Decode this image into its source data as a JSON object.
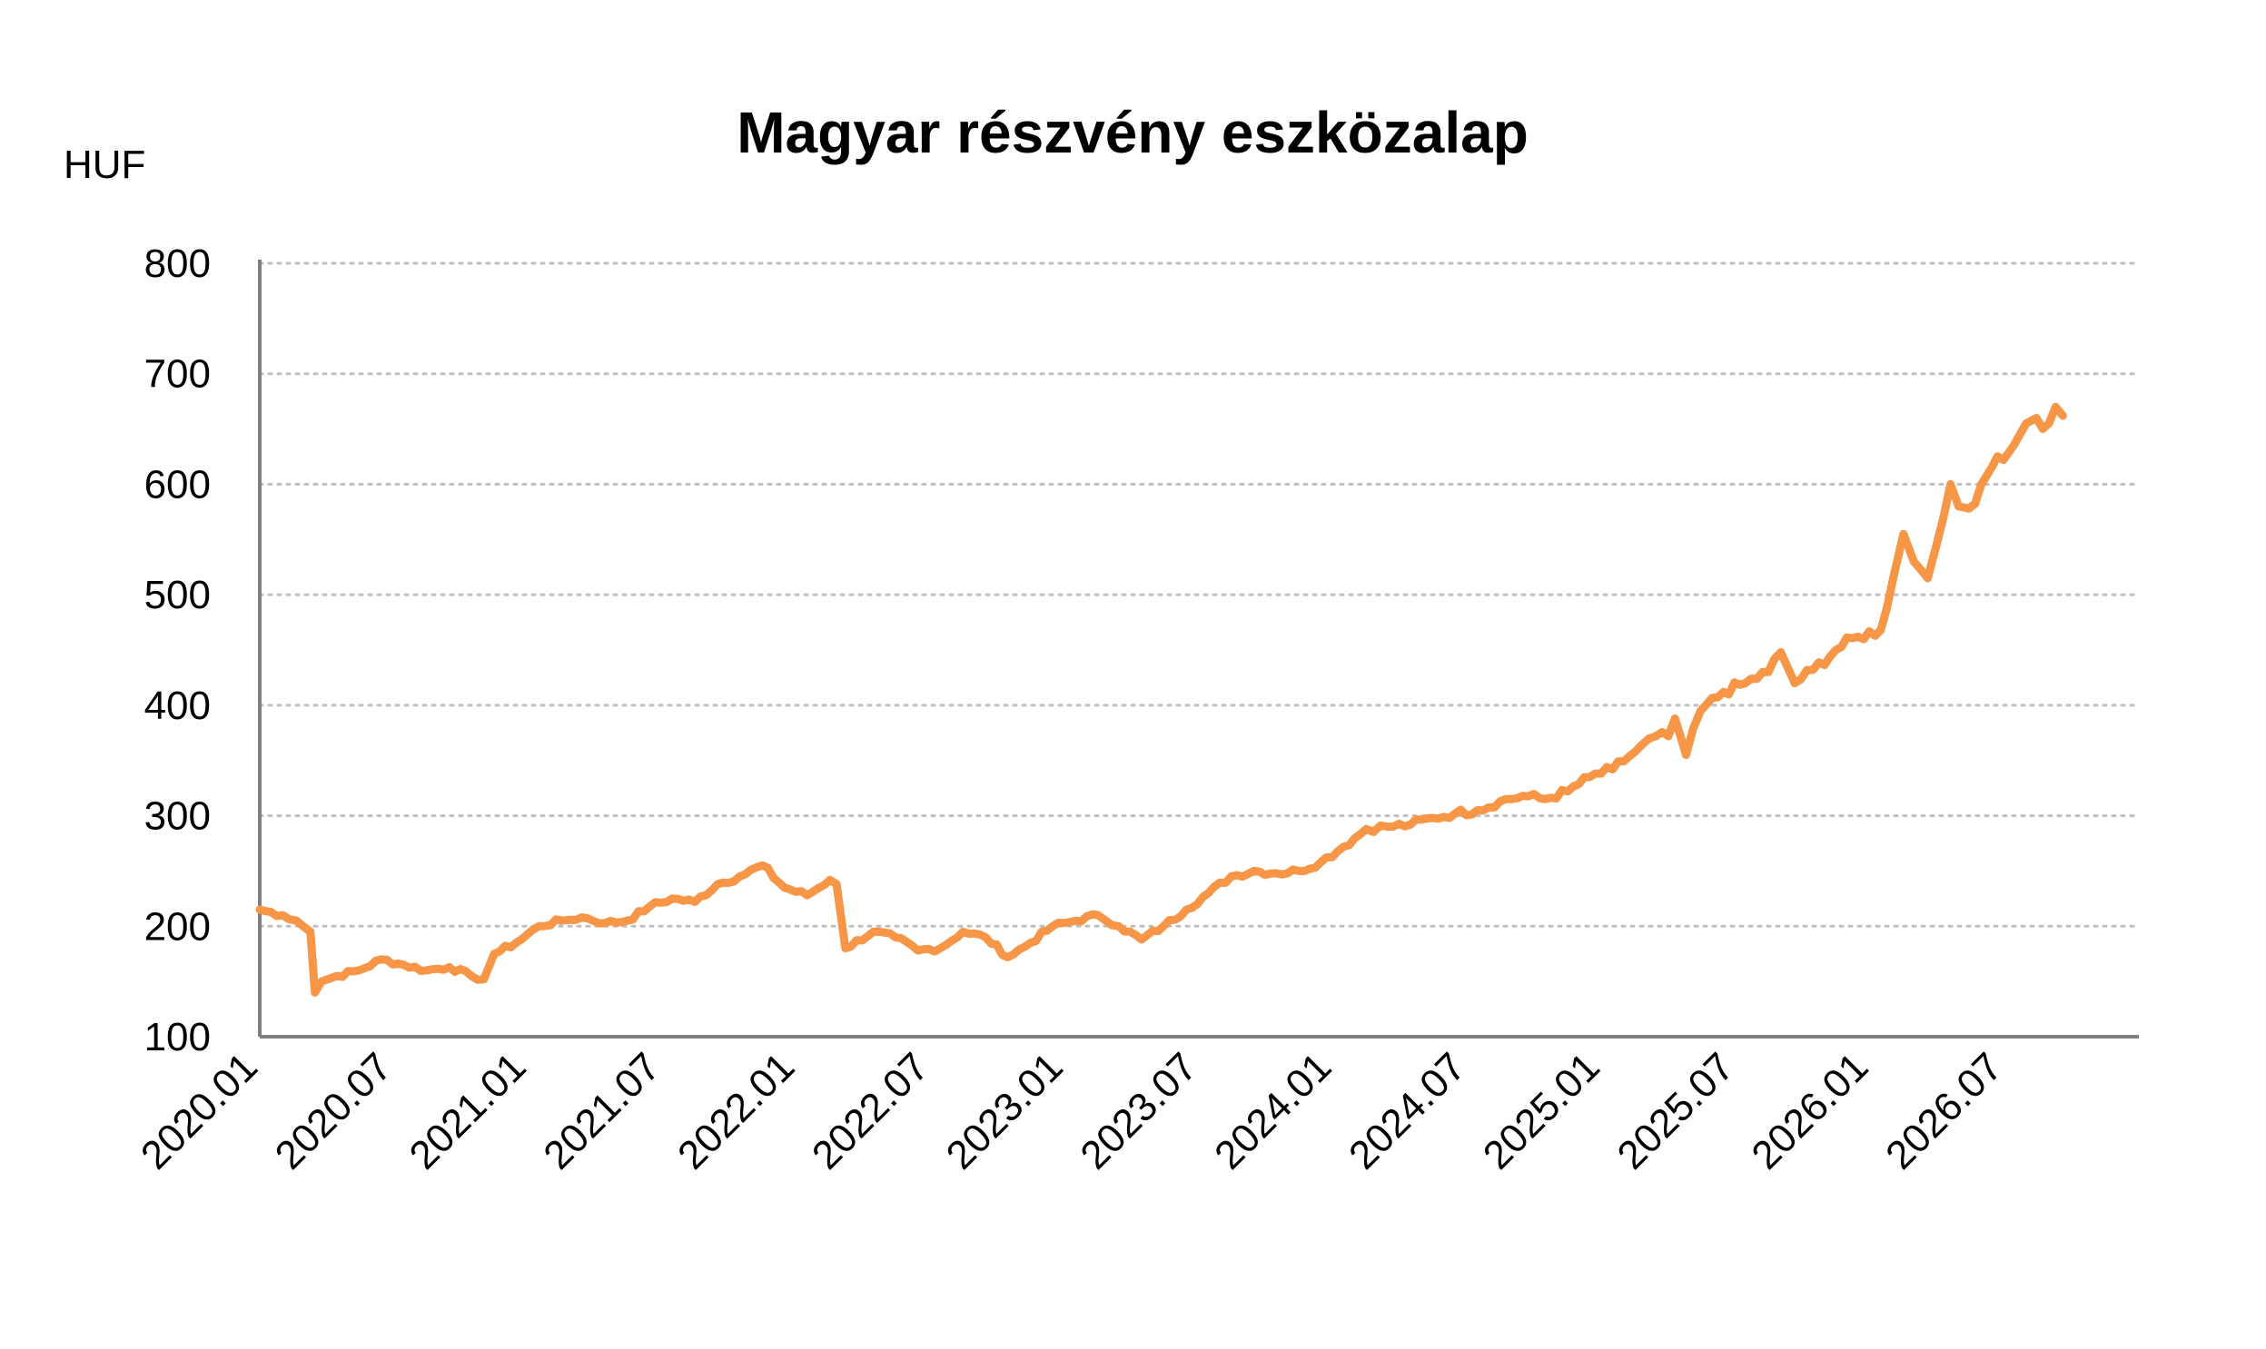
{
  "chart_data": {
    "type": "line",
    "title": "Magyar részvény eszközalap",
    "ylabel": "HUF",
    "xlabel": "",
    "ylim": [
      100,
      800
    ],
    "yticks": [
      "100",
      "200",
      "300",
      "400",
      "500",
      "600",
      "700",
      "800"
    ],
    "x_tick_labels": [
      "2020.01",
      "2020.07",
      "2021.01",
      "2021.07",
      "2022.01",
      "2022.07",
      "2023.01",
      "2023.07",
      "2024.01",
      "2024.07",
      "2025.01",
      "2025.07",
      "2026.01",
      "2026.07"
    ],
    "grid": "horizontal-dotted",
    "legend": "none",
    "series": [
      {
        "color": "#F79646",
        "x": [
          "2020-01-01",
          "2020-02-01",
          "2020-02-20",
          "2020-03-10",
          "2020-03-16",
          "2020-03-25",
          "2020-04-15",
          "2020-05-15",
          "2020-06-15",
          "2020-07-15",
          "2020-08-15",
          "2020-09-15",
          "2020-10-15",
          "2020-11-01",
          "2020-11-15",
          "2020-12-15",
          "2021-01-15",
          "2021-02-15",
          "2021-03-15",
          "2021-04-15",
          "2021-05-15",
          "2021-06-15",
          "2021-07-15",
          "2021-08-15",
          "2021-09-15",
          "2021-10-15",
          "2021-11-15",
          "2021-12-15",
          "2022-01-15",
          "2022-02-15",
          "2022-02-24",
          "2022-03-08",
          "2022-04-15",
          "2022-05-15",
          "2022-06-15",
          "2022-07-15",
          "2022-08-15",
          "2022-09-15",
          "2022-10-15",
          "2022-11-15",
          "2022-12-15",
          "2023-01-15",
          "2023-02-15",
          "2023-03-15",
          "2023-04-15",
          "2023-05-15",
          "2023-06-15",
          "2023-07-15",
          "2023-08-15",
          "2023-09-15",
          "2023-10-15",
          "2023-11-15",
          "2023-12-15",
          "2024-01-15",
          "2024-02-15",
          "2024-03-15",
          "2024-04-15",
          "2024-05-15",
          "2024-06-15",
          "2024-07-15",
          "2024-08-15",
          "2024-09-15",
          "2024-10-15",
          "2024-11-15",
          "2024-12-15",
          "2025-01-15",
          "2025-02-15",
          "2025-03-15",
          "2025-04-01",
          "2025-04-10",
          "2025-04-25",
          "2025-05-15",
          "2025-06-15",
          "2025-07-15",
          "2025-08-15",
          "2025-09-01",
          "2025-09-20",
          "2025-10-15",
          "2025-11-15",
          "2025-12-15",
          "2026-01-15",
          "2026-02-01",
          "2026-02-15",
          "2026-03-01",
          "2026-03-20",
          "2026-04-01",
          "2026-04-20",
          "2026-05-01",
          "2026-05-15",
          "2026-06-01",
          "2026-06-15",
          "2026-07-01",
          "2026-07-15",
          "2026-08-01",
          "2026-08-15",
          "2026-09-01",
          "2026-09-10",
          "2026-09-20"
        ],
        "y": [
          215,
          210,
          205,
          195,
          140,
          150,
          155,
          160,
          170,
          165,
          160,
          163,
          155,
          152,
          175,
          185,
          200,
          205,
          208,
          203,
          205,
          218,
          225,
          222,
          238,
          245,
          255,
          235,
          228,
          242,
          238,
          180,
          195,
          190,
          178,
          180,
          195,
          190,
          172,
          185,
          200,
          205,
          210,
          200,
          188,
          200,
          215,
          230,
          245,
          250,
          248,
          250,
          258,
          272,
          288,
          290,
          292,
          298,
          302,
          305,
          313,
          318,
          315,
          322,
          335,
          342,
          358,
          372,
          372,
          388,
          355,
          395,
          412,
          420,
          430,
          448,
          420,
          432,
          450,
          462,
          468,
          515,
          555,
          530,
          515,
          545,
          600,
          580,
          578,
          600,
          615,
          622,
          635,
          655,
          660,
          655,
          670,
          662
        ]
      }
    ]
  }
}
